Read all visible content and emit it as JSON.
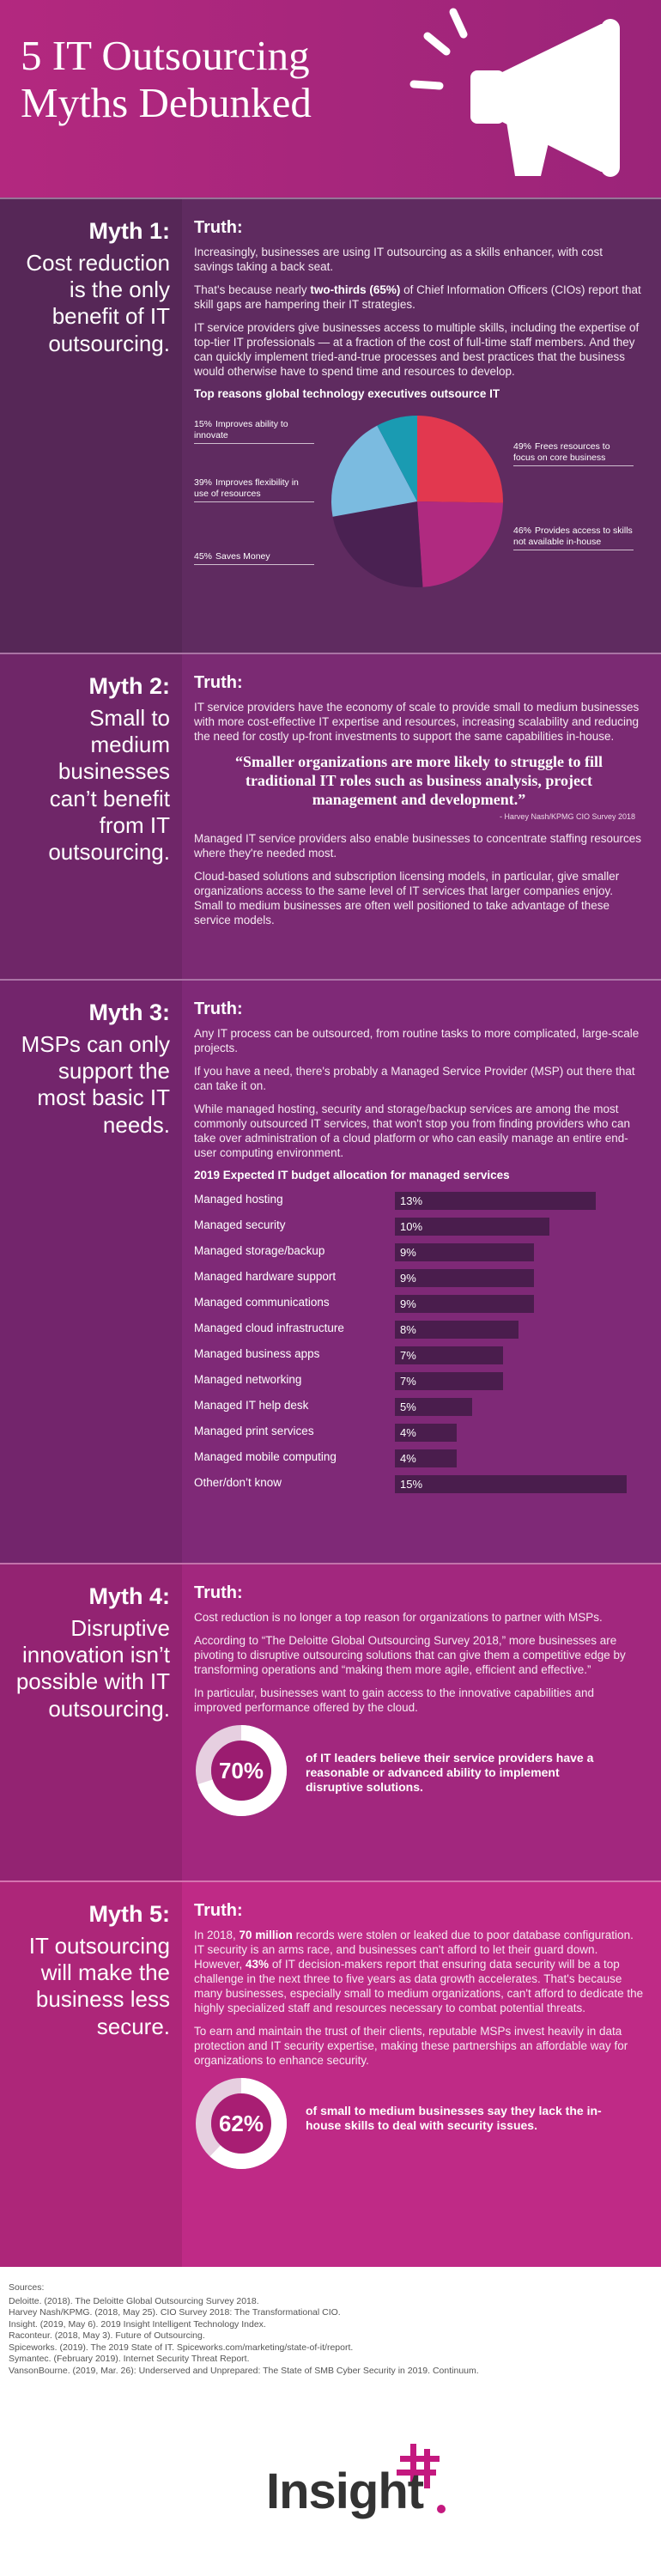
{
  "header": {
    "title": "5 IT Outsourcing Myths Debunked"
  },
  "myths": [
    {
      "label": "Myth 1:",
      "text": "Cost reduction is the only benefit of IT outsourcing.",
      "truth": {
        "heading": "Truth:",
        "blocks": [
          {
            "paragraph": [
              {
                "text": "Increasingly, businesses are using IT outsourcing as a skills enhancer, with cost savings taking a back seat."
              }
            ]
          },
          {
            "paragraph": [
              {
                "text": "That's because nearly "
              },
              {
                "text": "two-thirds (65%)",
                "bold": true
              },
              {
                "text": " of Chief Information Officers (CIOs) report that skill gaps are hampering their IT strategies."
              }
            ]
          },
          {
            "paragraph": [
              {
                "text": "IT service providers give businesses access to multiple skills, including the expertise of top-tier IT professionals — at a fraction of the cost of full-time staff members. And they can quickly implement tried-and-true processes and best practices that the business would otherwise have to spend time and resources to develop."
              }
            ]
          },
          {
            "chart": {
              "type": "pie",
              "title": "Top reasons global technology executives outsource IT",
              "categories": [
                "Frees resources to focus on core business",
                "Provides access to skills not available in-house",
                "Saves Money",
                "Improves flexibility in use of resources",
                "Improves ability to innovate"
              ],
              "values": [
                49,
                46,
                45,
                39,
                15
              ],
              "value_labels": [
                "49%",
                "46%",
                "45%",
                "39%",
                "15%"
              ],
              "colors": [
                "#e2384f",
                "#b02a80",
                "#4a2152",
                "#7bbbe0",
                "#1a9bb2"
              ]
            }
          }
        ]
      }
    },
    {
      "label": "Myth 2:",
      "text": "Small to medium businesses can’t benefit from IT outsourcing.",
      "truth": {
        "heading": "Truth:",
        "blocks": [
          {
            "paragraph": [
              {
                "text": "IT service providers have the economy of scale to provide small to medium businesses with more cost-effective IT expertise and resources, increasing scalability and reducing the need for costly up-front investments to support the same capabilities in-house."
              }
            ]
          },
          {
            "quote": "“Smaller organizations are more likely to struggle to fill traditional IT roles such as business analysis, project management and development.”",
            "source": "- Harvey Nash/KPMG CIO Survey 2018"
          },
          {
            "paragraph": [
              {
                "text": "Managed IT service providers also enable businesses to concentrate staffing resources where they're needed most."
              }
            ]
          },
          {
            "paragraph": [
              {
                "text": "Cloud-based solutions and subscription licensing models, in particular, give smaller organizations access to the same level of IT services that larger companies enjoy. Small to medium businesses are often well positioned to take advantage of these service models."
              }
            ]
          }
        ]
      }
    },
    {
      "label": "Myth 3:",
      "text": "MSPs can only support the most basic IT needs.",
      "truth": {
        "heading": "Truth:",
        "blocks": [
          {
            "paragraph": [
              {
                "text": "Any IT process can be outsourced, from routine tasks to more complicated, large-scale projects."
              }
            ]
          },
          {
            "paragraph": [
              {
                "text": "If you have a need, there's probably a Managed Service Provider (MSP) out there that can take it on."
              }
            ]
          },
          {
            "paragraph": [
              {
                "text": "While managed hosting, security and storage/backup services are among the most commonly outsourced IT services, that won't stop you from finding providers who can take over administration of a cloud platform or who can easily manage an entire end-user computing environment."
              }
            ]
          },
          {
            "chart": {
              "type": "bar",
              "title": "2019 Expected IT budget allocation for managed services",
              "categories": [
                "Managed hosting",
                "Managed security",
                "Managed storage/backup",
                "Managed hardware support",
                "Managed communications",
                "Managed cloud infrastructure",
                "Managed business apps",
                "Managed networking",
                "Managed IT help desk",
                "Managed print services",
                "Managed mobile computing",
                "Other/don’t know"
              ],
              "values": [
                13,
                10,
                9,
                9,
                9,
                8,
                7,
                7,
                5,
                4,
                4,
                15
              ],
              "value_labels": [
                "13%",
                "10%",
                "9%",
                "9%",
                "9%",
                "8%",
                "7%",
                "7%",
                "5%",
                "4%",
                "4%",
                "15%"
              ],
              "color": "#4a1d4d",
              "xlim": [
                0,
                15
              ]
            }
          }
        ]
      }
    },
    {
      "label": "Myth 4:",
      "text": "Disruptive innovation isn’t possible with IT outsourcing.",
      "truth": {
        "heading": "Truth:",
        "blocks": [
          {
            "paragraph": [
              {
                "text": "Cost reduction is no longer a top reason for organizations to partner with MSPs."
              }
            ]
          },
          {
            "paragraph": [
              {
                "text": "According to “The Deloitte Global Outsourcing Survey 2018,” more businesses are pivoting to disruptive outsourcing solutions that can give them a competitive edge by transforming operations and “making them more agile, efficient and effective.”"
              }
            ]
          },
          {
            "paragraph": [
              {
                "text": "In particular, businesses want to gain access to the innovative capabilities and improved performance offered by the cloud."
              }
            ]
          },
          {
            "stat": {
              "type": "donut",
              "value": 70,
              "value_label": "70%",
              "lim": [
                0,
                100
              ],
              "text": "of IT leaders believe their service providers have a reasonable or advanced ability to implement disruptive solutions."
            }
          }
        ]
      }
    },
    {
      "label": "Myth 5:",
      "text": "IT outsourcing will make the business less secure.",
      "truth": {
        "heading": "Truth:",
        "blocks": [
          {
            "paragraph": [
              {
                "text": "In 2018, "
              },
              {
                "text": "70 million",
                "bold": true
              },
              {
                "text": " records were stolen or leaked due to poor database configuration. IT security is an arms race, and businesses can't afford to let their guard down. However, "
              },
              {
                "text": "43%",
                "bold": true
              },
              {
                "text": " of IT decision-makers report that ensuring data security will be a top challenge in the next three to five years as data growth accelerates. That's because many businesses, especially small to medium organizations, can't afford to dedicate the highly specialized staff and resources necessary to combat potential threats."
              }
            ]
          },
          {
            "paragraph": [
              {
                "text": "To earn and maintain the trust of their clients, reputable MSPs invest heavily in data protection and IT security expertise, making these partnerships an affordable way for organizations to enhance security."
              }
            ]
          },
          {
            "stat": {
              "type": "donut",
              "value": 62,
              "value_label": "62%",
              "lim": [
                0,
                100
              ],
              "text": "of small to medium businesses say they lack the in-house skills to deal with security issues."
            }
          }
        ]
      }
    }
  ],
  "sources": {
    "heading": "Sources:",
    "items": [
      "Deloitte. (2018). The Deloitte Global Outsourcing Survey 2018.",
      "Harvey Nash/KPMG. (2018, May 25). CIO Survey 2018: The Transformational CIO.",
      "Insight. (2019, May 6). 2019 Insight Intelligent Technology Index.",
      "Raconteur. (2018, May 3). Future of Outsourcing.",
      "Spiceworks. (2019). The 2019 State of IT. Spiceworks.com/marketing/state-of-it/report.",
      "Symantec. (February 2019). Internet Security Threat Report.",
      "VansonBourne. (2019, Mar. 26): Underserved and Unprepared: The State of SMB Cyber Security in 2019. Continuum."
    ]
  },
  "logo": "Insight"
}
